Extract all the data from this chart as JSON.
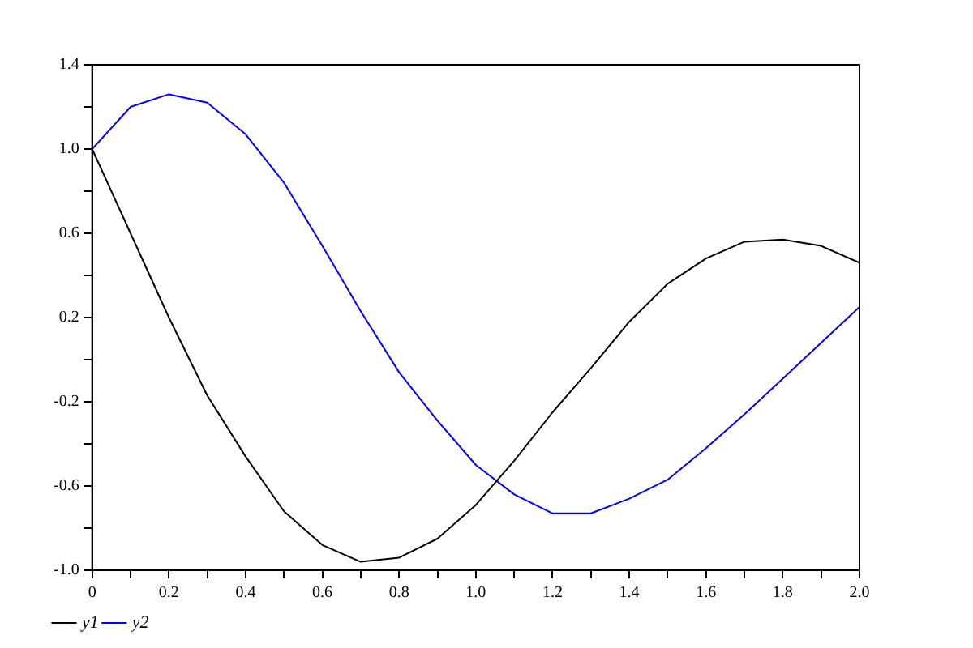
{
  "chart_data": {
    "type": "line",
    "x": [
      0,
      0.1,
      0.2,
      0.3,
      0.4,
      0.5,
      0.6,
      0.7,
      0.8,
      0.9,
      1.0,
      1.1,
      1.2,
      1.3,
      1.4,
      1.5,
      1.6,
      1.7,
      1.8,
      1.9,
      2.0
    ],
    "series": [
      {
        "name": "y1",
        "color": "#000000",
        "values": [
          1.0,
          0.6,
          0.2,
          -0.17,
          -0.46,
          -0.72,
          -0.88,
          -0.96,
          -0.94,
          -0.85,
          -0.69,
          -0.48,
          -0.25,
          -0.04,
          0.18,
          0.36,
          0.48,
          0.56,
          0.57,
          0.54,
          0.46
        ]
      },
      {
        "name": "y2",
        "color": "#0000ff",
        "values": [
          1.0,
          1.2,
          1.26,
          1.22,
          1.07,
          0.84,
          0.54,
          0.23,
          -0.06,
          -0.29,
          -0.5,
          -0.64,
          -0.73,
          -0.73,
          -0.66,
          -0.57,
          -0.42,
          -0.26,
          -0.09,
          0.08,
          0.25
        ]
      }
    ],
    "xlim": [
      0,
      2
    ],
    "xticks": [
      0,
      {
        "value": 0.1,
        "label": null
      },
      0.2,
      {
        "value": 0.3,
        "label": null
      },
      0.4,
      {
        "value": 0.5,
        "label": null
      },
      0.6,
      {
        "value": 0.7,
        "label": null
      },
      0.8,
      {
        "value": 0.9,
        "label": null
      },
      {
        "value": 1,
        "label": "1.0"
      },
      {
        "value": 1.1,
        "label": null
      },
      1.2,
      {
        "value": 1.3,
        "label": null
      },
      1.4,
      {
        "value": 1.5,
        "label": null
      },
      1.6,
      {
        "value": 1.7,
        "label": null
      },
      1.8,
      {
        "value": 1.9,
        "label": null
      },
      {
        "value": 2,
        "label": "2.0"
      }
    ],
    "ylim": [
      -1,
      1.4
    ],
    "yticks": [
      {
        "value": -1,
        "label": "-1.0"
      },
      {
        "value": -0.8,
        "label": null
      },
      -0.6,
      {
        "value": -0.4,
        "label": null
      },
      -0.2,
      {
        "value": 0,
        "label": null
      },
      0.2,
      {
        "value": 0.4,
        "label": null
      },
      0.6,
      {
        "value": 0.8,
        "label": null
      },
      {
        "value": 1,
        "label": "1.0"
      },
      {
        "value": 1.2,
        "label": null
      },
      1.4
    ],
    "grid": false,
    "legend": "bottom left",
    "marker": "none",
    "line_style": "solid"
  }
}
